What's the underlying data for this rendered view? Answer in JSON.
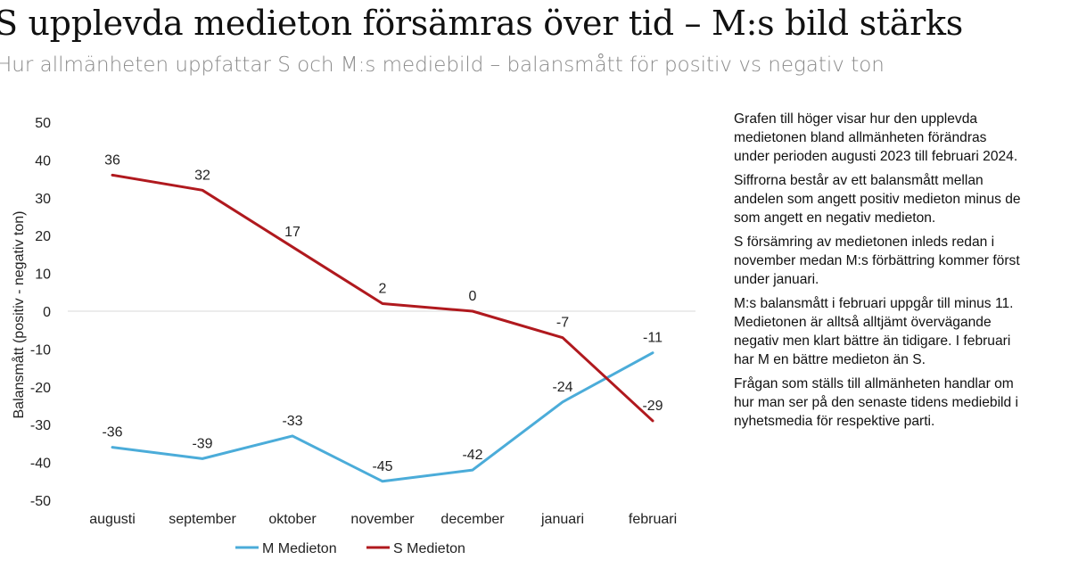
{
  "title": "S upplevda medieton försämras över tid – M:s bild stärks",
  "subtitle": "Hur allmänheten uppfattar S och M:s mediebild – balansmått för positiv vs negativ ton",
  "notes": [
    "Grafen till höger visar hur den upplevda\nmedietonen bland allmänheten förändras\nunder perioden augusti 2023 till februari 2024.",
    "Siffrorna består av ett balansmått mellan\nandelen som angett positiv medieton minus de\nsom angett en negativ medieton.",
    "S försämring av medietonen inleds redan i\nnovember medan M:s förbättring kommer först\nunder januari.",
    "M:s balansmått i februari uppgår till minus 11.\nMedietonen är alltså alltjämt övervägande\nnegativ men klart bättre än tidigare. I februari\nhar M en bättre medieton än S.",
    "Frågan som ställs till allmänheten handlar om\nhur man ser på den senaste tidens mediebild i\nnyhetsmedia för respektive parti."
  ],
  "chart_data": {
    "type": "line",
    "title": "",
    "xlabel": "",
    "ylabel": "Balansmått (positiv - negativ ton)",
    "categories": [
      "augusti",
      "september",
      "oktober",
      "november",
      "december",
      "januari",
      "februari"
    ],
    "ylim": [
      -50,
      50
    ],
    "yticks": [
      50,
      40,
      30,
      20,
      10,
      0,
      -10,
      -20,
      -30,
      -40,
      -50
    ],
    "grid": false,
    "legend_position": "bottom",
    "series": [
      {
        "name": "M Medieton",
        "color": "#4bacd9",
        "values": [
          -36,
          -39,
          -33,
          -45,
          -42,
          -24,
          -11
        ]
      },
      {
        "name": "S Medieton",
        "color": "#b0191e",
        "values": [
          36,
          32,
          17,
          2,
          0,
          -7,
          -29
        ]
      }
    ]
  }
}
